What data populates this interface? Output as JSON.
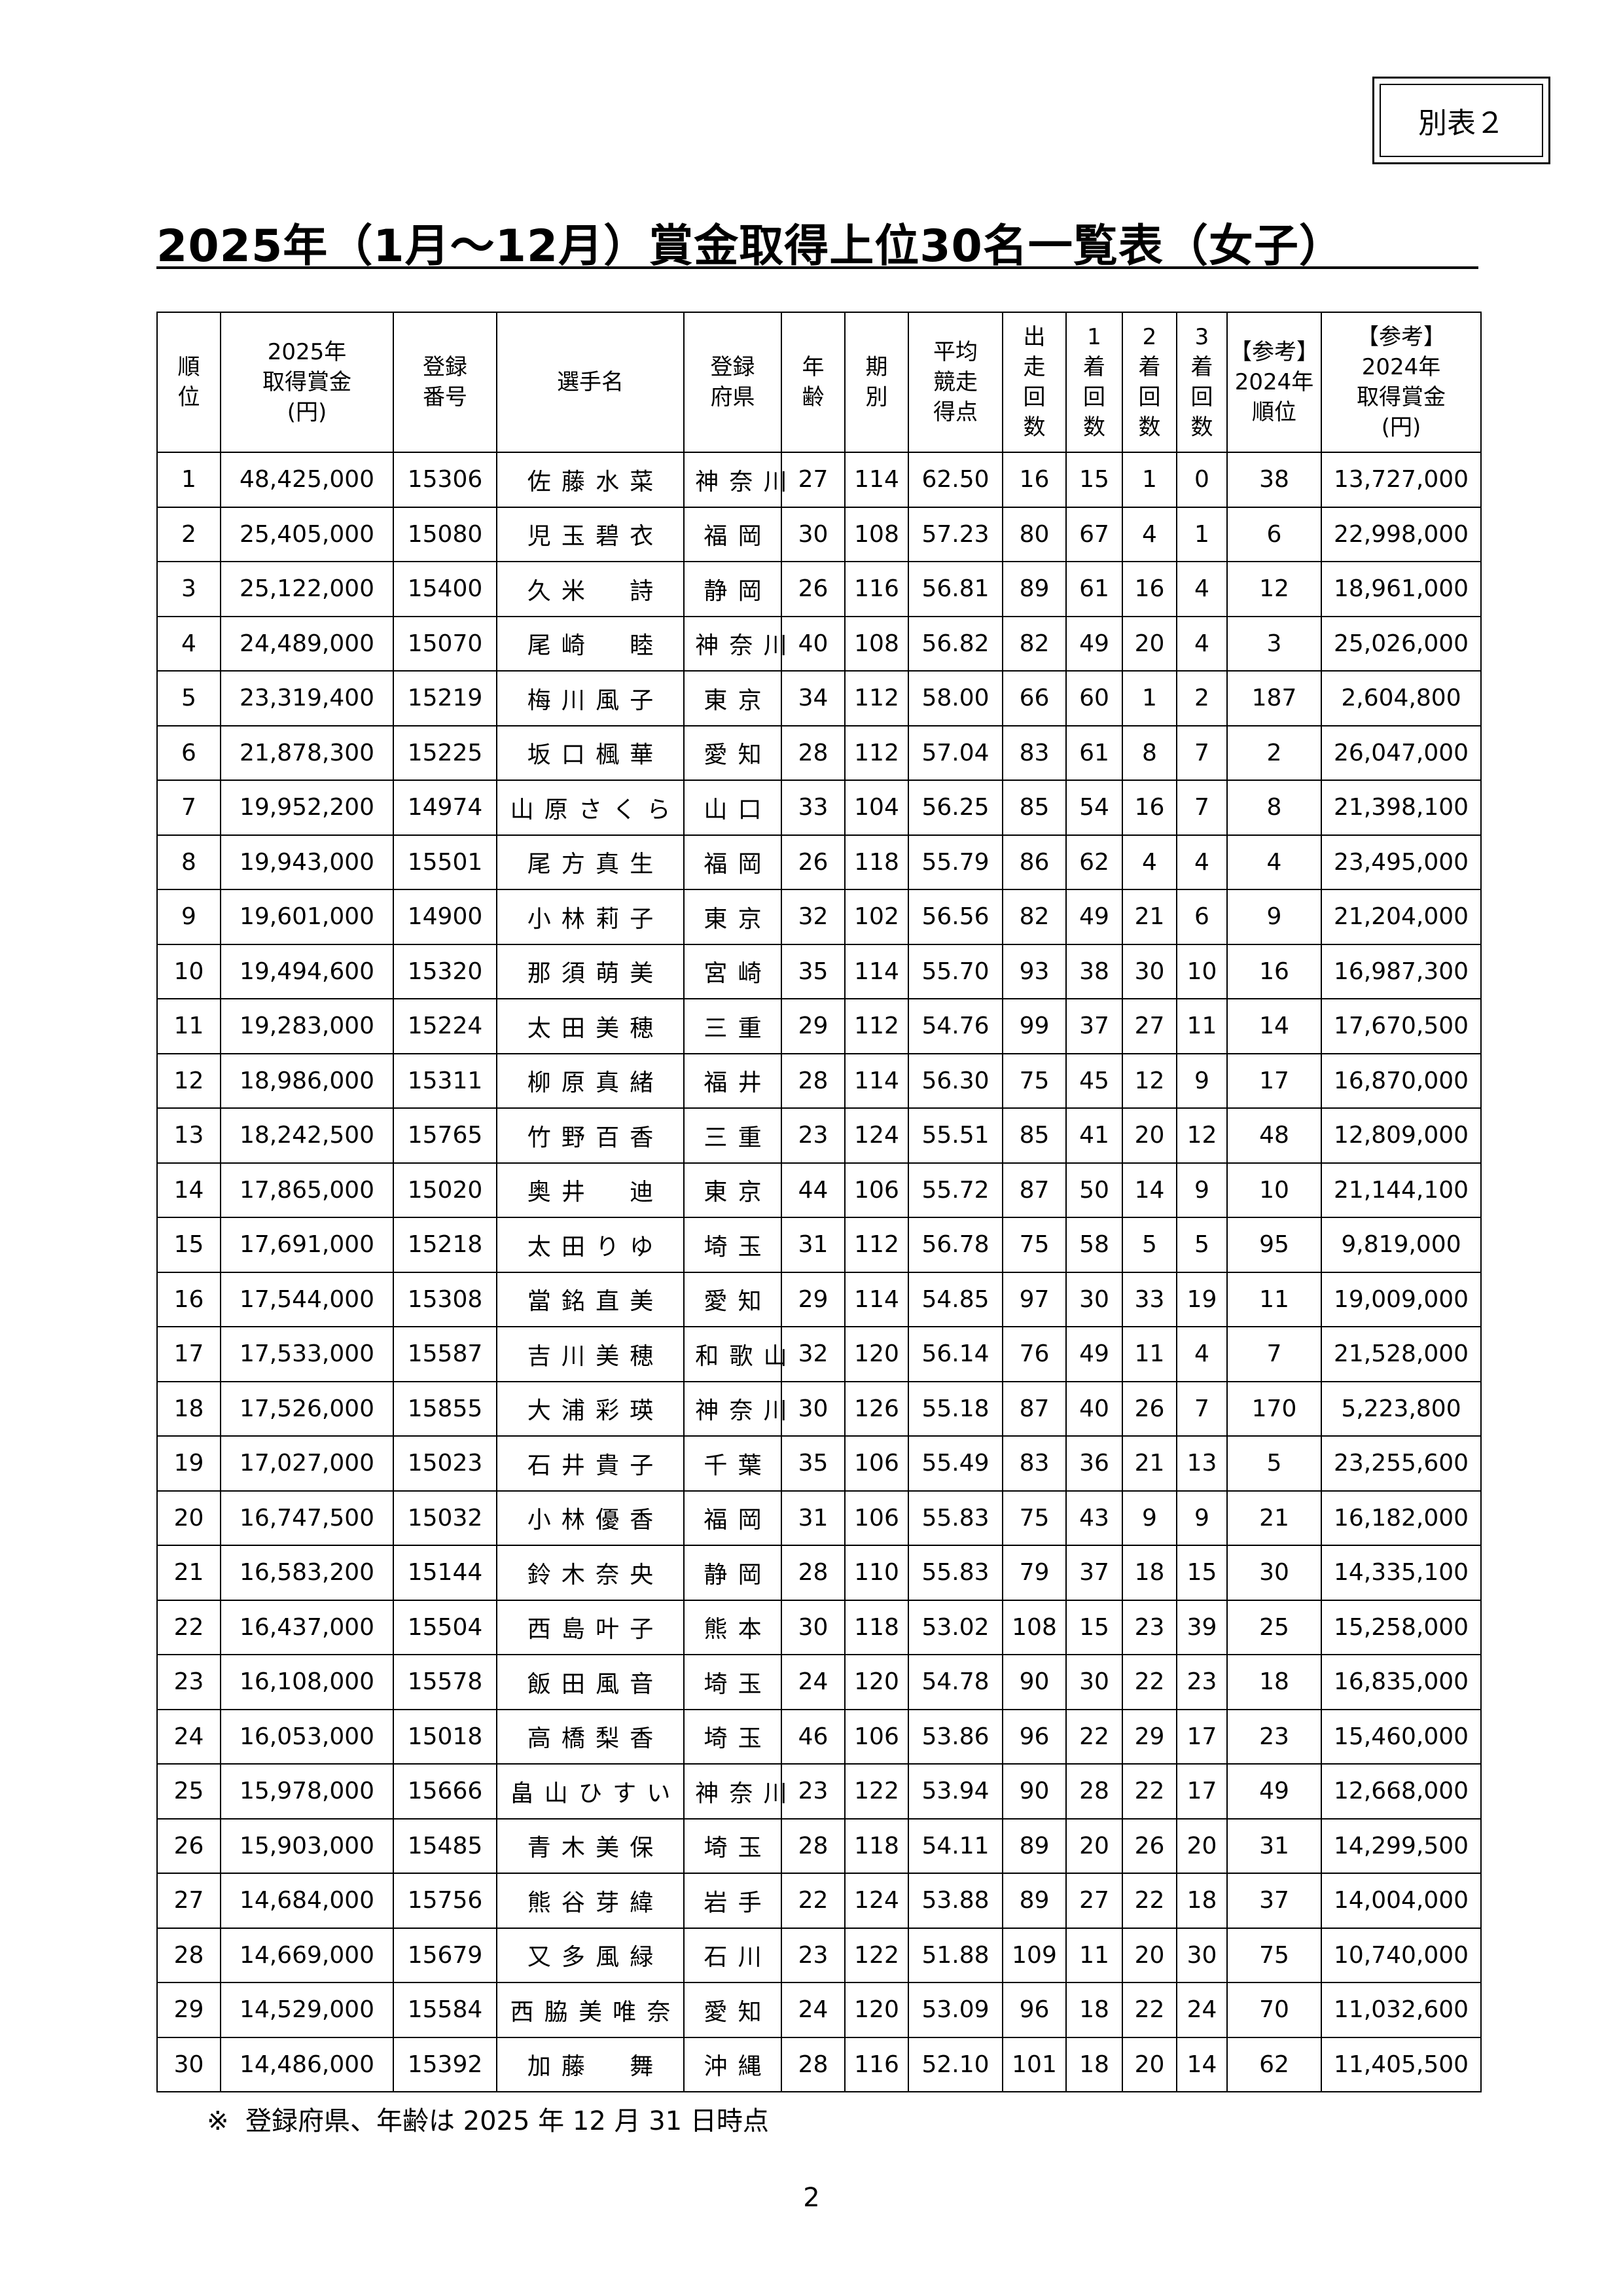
{
  "label": "別表２",
  "title": "2025年（1月～12月）賞金取得上位30名一覧表（女子）",
  "columns": [
    "順\n位",
    "2025年\n取得賞金\n(円)",
    "登録\n番号",
    "選手名",
    "登録\n府県",
    "年\n齢",
    "期\n別",
    "平均\n競走\n得点",
    "出\n走\n回\n数",
    "1\n着\n回\n数",
    "2\n着\n回\n数",
    "3\n着\n回\n数",
    "【参考】\n2024年\n順位",
    "【参考】\n2024年\n取得賞金\n(円)"
  ],
  "rows": [
    [
      "1",
      "48,425,000",
      "15306",
      "佐藤水菜",
      "神奈川",
      "27",
      "114",
      "62.50",
      "16",
      "15",
      "1",
      "0",
      "38",
      "13,727,000"
    ],
    [
      "2",
      "25,405,000",
      "15080",
      "児玉碧衣",
      "福岡",
      "30",
      "108",
      "57.23",
      "80",
      "67",
      "4",
      "1",
      "6",
      "22,998,000"
    ],
    [
      "3",
      "25,122,000",
      "15400",
      "久米　詩",
      "静岡",
      "26",
      "116",
      "56.81",
      "89",
      "61",
      "16",
      "4",
      "12",
      "18,961,000"
    ],
    [
      "4",
      "24,489,000",
      "15070",
      "尾崎　睦",
      "神奈川",
      "40",
      "108",
      "56.82",
      "82",
      "49",
      "20",
      "4",
      "3",
      "25,026,000"
    ],
    [
      "5",
      "23,319,400",
      "15219",
      "梅川風子",
      "東京",
      "34",
      "112",
      "58.00",
      "66",
      "60",
      "1",
      "2",
      "187",
      "2,604,800"
    ],
    [
      "6",
      "21,878,300",
      "15225",
      "坂口楓華",
      "愛知",
      "28",
      "112",
      "57.04",
      "83",
      "61",
      "8",
      "7",
      "2",
      "26,047,000"
    ],
    [
      "7",
      "19,952,200",
      "14974",
      "山原さくら",
      "山口",
      "33",
      "104",
      "56.25",
      "85",
      "54",
      "16",
      "7",
      "8",
      "21,398,100"
    ],
    [
      "8",
      "19,943,000",
      "15501",
      "尾方真生",
      "福岡",
      "26",
      "118",
      "55.79",
      "86",
      "62",
      "4",
      "4",
      "4",
      "23,495,000"
    ],
    [
      "9",
      "19,601,000",
      "14900",
      "小林莉子",
      "東京",
      "32",
      "102",
      "56.56",
      "82",
      "49",
      "21",
      "6",
      "9",
      "21,204,000"
    ],
    [
      "10",
      "19,494,600",
      "15320",
      "那須萌美",
      "宮崎",
      "35",
      "114",
      "55.70",
      "93",
      "38",
      "30",
      "10",
      "16",
      "16,987,300"
    ],
    [
      "11",
      "19,283,000",
      "15224",
      "太田美穂",
      "三重",
      "29",
      "112",
      "54.76",
      "99",
      "37",
      "27",
      "11",
      "14",
      "17,670,500"
    ],
    [
      "12",
      "18,986,000",
      "15311",
      "柳原真緒",
      "福井",
      "28",
      "114",
      "56.30",
      "75",
      "45",
      "12",
      "9",
      "17",
      "16,870,000"
    ],
    [
      "13",
      "18,242,500",
      "15765",
      "竹野百香",
      "三重",
      "23",
      "124",
      "55.51",
      "85",
      "41",
      "20",
      "12",
      "48",
      "12,809,000"
    ],
    [
      "14",
      "17,865,000",
      "15020",
      "奥井　迪",
      "東京",
      "44",
      "106",
      "55.72",
      "87",
      "50",
      "14",
      "9",
      "10",
      "21,144,100"
    ],
    [
      "15",
      "17,691,000",
      "15218",
      "太田りゆ",
      "埼玉",
      "31",
      "112",
      "56.78",
      "75",
      "58",
      "5",
      "5",
      "95",
      "9,819,000"
    ],
    [
      "16",
      "17,544,000",
      "15308",
      "當銘直美",
      "愛知",
      "29",
      "114",
      "54.85",
      "97",
      "30",
      "33",
      "19",
      "11",
      "19,009,000"
    ],
    [
      "17",
      "17,533,000",
      "15587",
      "吉川美穂",
      "和歌山",
      "32",
      "120",
      "56.14",
      "76",
      "49",
      "11",
      "4",
      "7",
      "21,528,000"
    ],
    [
      "18",
      "17,526,000",
      "15855",
      "大浦彩瑛",
      "神奈川",
      "30",
      "126",
      "55.18",
      "87",
      "40",
      "26",
      "7",
      "170",
      "5,223,800"
    ],
    [
      "19",
      "17,027,000",
      "15023",
      "石井貴子",
      "千葉",
      "35",
      "106",
      "55.49",
      "83",
      "36",
      "21",
      "13",
      "5",
      "23,255,600"
    ],
    [
      "20",
      "16,747,500",
      "15032",
      "小林優香",
      "福岡",
      "31",
      "106",
      "55.83",
      "75",
      "43",
      "9",
      "9",
      "21",
      "16,182,000"
    ],
    [
      "21",
      "16,583,200",
      "15144",
      "鈴木奈央",
      "静岡",
      "28",
      "110",
      "55.83",
      "79",
      "37",
      "18",
      "15",
      "30",
      "14,335,100"
    ],
    [
      "22",
      "16,437,000",
      "15504",
      "西島叶子",
      "熊本",
      "30",
      "118",
      "53.02",
      "108",
      "15",
      "23",
      "39",
      "25",
      "15,258,000"
    ],
    [
      "23",
      "16,108,000",
      "15578",
      "飯田風音",
      "埼玉",
      "24",
      "120",
      "54.78",
      "90",
      "30",
      "22",
      "23",
      "18",
      "16,835,000"
    ],
    [
      "24",
      "16,053,000",
      "15018",
      "高橋梨香",
      "埼玉",
      "46",
      "106",
      "53.86",
      "96",
      "22",
      "29",
      "17",
      "23",
      "15,460,000"
    ],
    [
      "25",
      "15,978,000",
      "15666",
      "畠山ひすい",
      "神奈川",
      "23",
      "122",
      "53.94",
      "90",
      "28",
      "22",
      "17",
      "49",
      "12,668,000"
    ],
    [
      "26",
      "15,903,000",
      "15485",
      "青木美保",
      "埼玉",
      "28",
      "118",
      "54.11",
      "89",
      "20",
      "26",
      "20",
      "31",
      "14,299,500"
    ],
    [
      "27",
      "14,684,000",
      "15756",
      "熊谷芽緯",
      "岩手",
      "22",
      "124",
      "53.88",
      "89",
      "27",
      "22",
      "18",
      "37",
      "14,004,000"
    ],
    [
      "28",
      "14,669,000",
      "15679",
      "又多風緑",
      "石川",
      "23",
      "122",
      "51.88",
      "109",
      "11",
      "20",
      "30",
      "75",
      "10,740,000"
    ],
    [
      "29",
      "14,529,000",
      "15584",
      "西脇美唯奈",
      "愛知",
      "24",
      "120",
      "53.09",
      "96",
      "18",
      "22",
      "24",
      "70",
      "11,032,600"
    ],
    [
      "30",
      "14,486,000",
      "15392",
      "加藤　舞",
      "沖縄",
      "28",
      "116",
      "52.10",
      "101",
      "18",
      "20",
      "14",
      "62",
      "11,405,500"
    ]
  ],
  "footnote": "※  登録府県、年齢は 2025 年 12 月 31 日時点",
  "page_number": "2"
}
